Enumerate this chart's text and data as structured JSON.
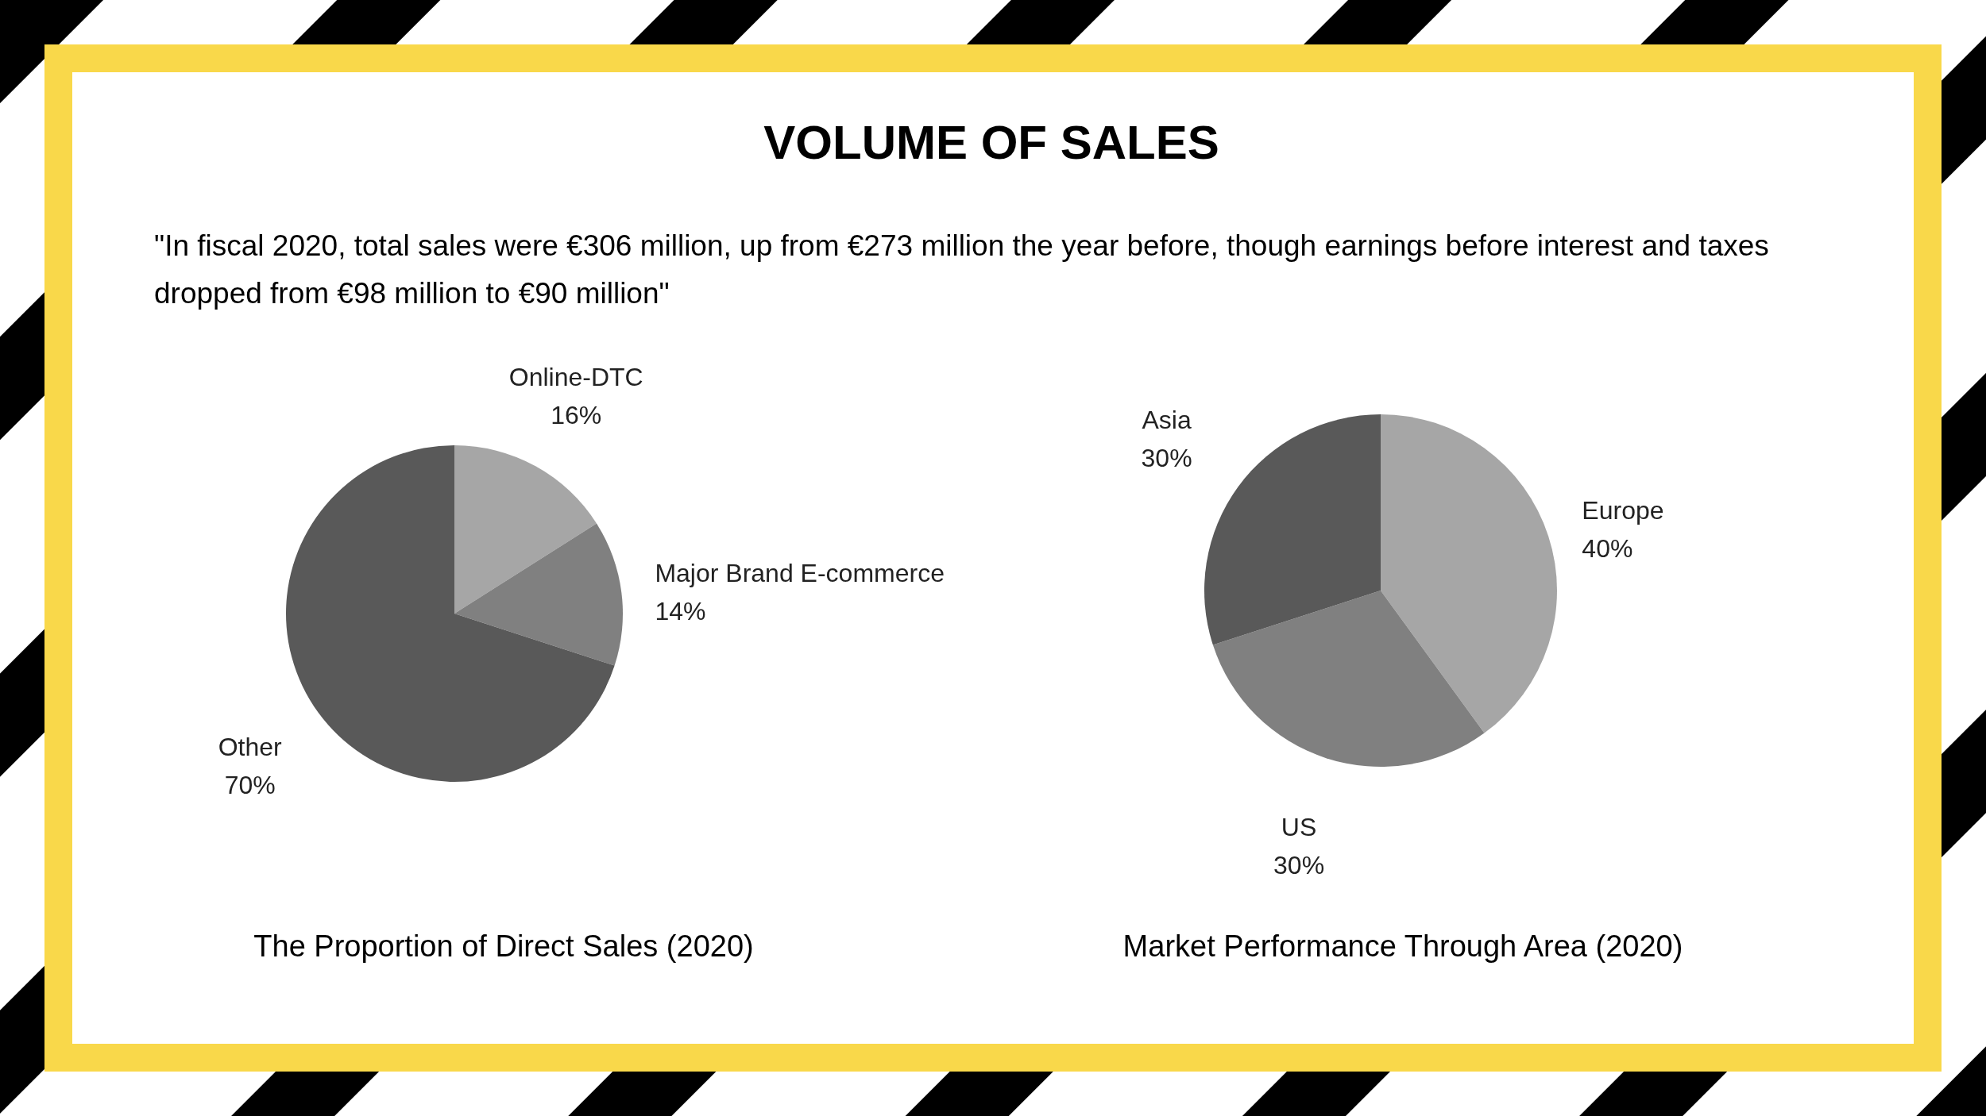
{
  "chart_data": [
    {
      "type": "other",
      "title": "VOLUME OF SALES",
      "subtitle": "\"In fiscal 2020, total sales were €306 million, up from €273 million the year before, though earnings before interest and taxes dropped from €98 million to €90 million\""
    },
    {
      "type": "pie",
      "title": "The Proportion of Direct Sales (2020)",
      "categories": [
        "Online-DTC",
        "Major Brand E-commerce",
        "Other"
      ],
      "values": [
        16,
        14,
        70
      ],
      "colors": [
        "#a6a6a6",
        "#808080",
        "#595959"
      ],
      "value_labels": [
        "16%",
        "14%",
        "70%"
      ]
    },
    {
      "type": "pie",
      "title": "Market Performance Through Area (2020)",
      "categories": [
        "Europe",
        "US",
        "Asia"
      ],
      "values": [
        40,
        30,
        30
      ],
      "colors": [
        "#a6a6a6",
        "#808080",
        "#595959"
      ],
      "value_labels": [
        "40%",
        "30%",
        "30%"
      ]
    }
  ]
}
